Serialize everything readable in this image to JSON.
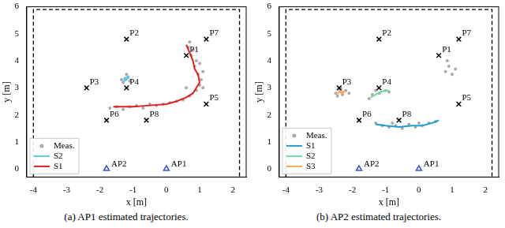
{
  "chart_data": [
    {
      "type": "scatter",
      "title": "(a) AP1 estimated trajectories.",
      "x_label": "x [m]",
      "y_label": "y [m]",
      "xlim": [
        -4.2,
        2.4
      ],
      "xticks": [
        -4,
        -3,
        -2,
        -1,
        0,
        1,
        2
      ],
      "ylim": [
        -0.3,
        6.0
      ],
      "yticks": [
        0,
        1,
        2,
        3,
        4,
        5,
        6
      ],
      "grid": false,
      "legend": "lower left",
      "series": [
        {
          "color": "#000000",
          "type": "line",
          "line_style": "dashed",
          "x": [
            -4,
            -4,
            2.2,
            2.2
          ],
          "values": [
            -0.3,
            5.9,
            5.9,
            -0.3
          ]
        },
        {
          "name": "Meas.",
          "color": "#aaaaaa",
          "type": "scatter",
          "x": [
            -1.3,
            -1.15,
            -1.25,
            -1.1,
            -1.2,
            -1.35,
            -1.7,
            -1.5,
            -1.3,
            -1.1,
            -0.9,
            -0.7,
            -0.5,
            -0.3,
            -0.1,
            0.1,
            0.3,
            0.5,
            0.7,
            0.9,
            1.0,
            1.05,
            0.95,
            1.1,
            0.85,
            0.9,
            0.75,
            0.8,
            0.65,
            0.7,
            1.0,
            1.1,
            0.6
          ],
          "values": [
            3.2,
            3.4,
            3.35,
            3.25,
            3.5,
            3.3,
            2.25,
            2.3,
            2.2,
            2.3,
            2.35,
            2.25,
            2.4,
            2.35,
            2.4,
            2.45,
            2.5,
            2.55,
            2.7,
            2.9,
            3.1,
            3.3,
            3.5,
            3.6,
            3.8,
            4.0,
            4.2,
            4.4,
            4.5,
            4.7,
            3.9,
            3.0,
            3.0
          ]
        },
        {
          "name": "S2",
          "color": "#5bc8e8",
          "type": "line",
          "x": [
            -1.3,
            -1.2,
            -1.15,
            -1.25,
            -1.2
          ],
          "values": [
            3.25,
            3.3,
            3.4,
            3.35,
            3.3
          ]
        },
        {
          "name": "S1",
          "color": "#e0201b",
          "type": "line",
          "x": [
            -1.6,
            -1.0,
            -0.5,
            0.0,
            0.3,
            0.6,
            0.8,
            1.0,
            0.95,
            0.85,
            0.8,
            0.7,
            0.6
          ],
          "values": [
            2.3,
            2.3,
            2.35,
            2.4,
            2.5,
            2.65,
            2.8,
            3.2,
            3.5,
            3.7,
            4.0,
            4.3,
            4.6
          ]
        }
      ],
      "annotations": [
        {
          "text": "P1",
          "x": 0.6,
          "y": 4.2,
          "marker": "x",
          "color": "#000000"
        },
        {
          "text": "P2",
          "x": -1.2,
          "y": 4.8,
          "marker": "x",
          "color": "#000000"
        },
        {
          "text": "P3",
          "x": -2.4,
          "y": 3.0,
          "marker": "x",
          "color": "#000000"
        },
        {
          "text": "P4",
          "x": -1.2,
          "y": 3.0,
          "marker": "x",
          "color": "#000000"
        },
        {
          "text": "P5",
          "x": 1.2,
          "y": 2.4,
          "marker": "x",
          "color": "#000000"
        },
        {
          "text": "P6",
          "x": -1.8,
          "y": 1.8,
          "marker": "x",
          "color": "#000000"
        },
        {
          "text": "P7",
          "x": 1.2,
          "y": 4.8,
          "marker": "x",
          "color": "#000000"
        },
        {
          "text": "P8",
          "x": -0.6,
          "y": 1.8,
          "marker": "x",
          "color": "#000000"
        },
        {
          "text": "AP1",
          "x": 0,
          "y": 0,
          "marker": "triangle",
          "color": "#3355cc"
        },
        {
          "text": "AP2",
          "x": -1.8,
          "y": 0,
          "marker": "triangle",
          "color": "#3355cc"
        }
      ]
    },
    {
      "type": "scatter",
      "title": "(b) AP2 estimated trajectories.",
      "x_label": "x [m]",
      "y_label": "y [m]",
      "xlim": [
        -4.2,
        2.4
      ],
      "xticks": [
        -4,
        -3,
        -2,
        -1,
        0,
        1,
        2
      ],
      "ylim": [
        -0.3,
        6.0
      ],
      "yticks": [
        0,
        1,
        2,
        3,
        4,
        5,
        6
      ],
      "grid": false,
      "legend": "lower left",
      "series": [
        {
          "color": "#000000",
          "type": "line",
          "line_style": "dashed",
          "x": [
            -4,
            -4,
            2.2,
            2.2
          ],
          "values": [
            -0.3,
            5.9,
            5.9,
            -0.3
          ]
        },
        {
          "name": "Meas.",
          "color": "#aaaaaa",
          "type": "scatter",
          "x": [
            -1.3,
            -1.1,
            -0.9,
            -0.7,
            -0.5,
            -0.3,
            -0.1,
            0.1,
            0.3,
            0.5,
            -0.8,
            0.0,
            -1.5,
            -1.4,
            -1.2,
            -1.0,
            -0.9,
            -1.3,
            -2.5,
            -2.4,
            -2.3,
            -2.2,
            -2.45,
            -2.35,
            -2.1,
            0.8,
            0.9,
            1.0,
            0.85,
            1.1
          ],
          "values": [
            1.7,
            1.6,
            1.55,
            1.6,
            1.5,
            1.65,
            1.55,
            1.6,
            1.7,
            1.75,
            1.7,
            1.7,
            2.6,
            2.75,
            2.8,
            2.9,
            2.85,
            2.9,
            2.8,
            2.95,
            2.75,
            2.9,
            2.7,
            3.0,
            2.8,
            3.6,
            3.8,
            3.5,
            4.0,
            3.7
          ]
        },
        {
          "name": "S1",
          "color": "#1f9ed0",
          "type": "line",
          "x": [
            -1.3,
            -1.0,
            -0.6,
            -0.2,
            0.1,
            0.4,
            0.6
          ],
          "values": [
            1.65,
            1.6,
            1.55,
            1.6,
            1.6,
            1.7,
            1.8
          ]
        },
        {
          "name": "S2",
          "color": "#6edc9a",
          "type": "line",
          "x": [
            -1.45,
            -1.3,
            -1.15,
            -1.0,
            -0.9
          ],
          "values": [
            2.65,
            2.75,
            2.85,
            2.9,
            2.9
          ]
        },
        {
          "name": "S3",
          "color": "#f4a45c",
          "type": "line",
          "x": [
            -2.45,
            -2.35,
            -2.25,
            -2.3,
            -2.4
          ],
          "values": [
            2.8,
            2.9,
            2.85,
            2.8,
            2.85
          ]
        }
      ],
      "annotations": [
        {
          "text": "P1",
          "x": 0.6,
          "y": 4.2,
          "marker": "x",
          "color": "#000000"
        },
        {
          "text": "P2",
          "x": -1.2,
          "y": 4.8,
          "marker": "x",
          "color": "#000000"
        },
        {
          "text": "P3",
          "x": -2.4,
          "y": 3.0,
          "marker": "x",
          "color": "#000000"
        },
        {
          "text": "P4",
          "x": -1.2,
          "y": 3.0,
          "marker": "x",
          "color": "#000000"
        },
        {
          "text": "P5",
          "x": 1.2,
          "y": 2.4,
          "marker": "x",
          "color": "#000000"
        },
        {
          "text": "P6",
          "x": -1.8,
          "y": 1.8,
          "marker": "x",
          "color": "#000000"
        },
        {
          "text": "P7",
          "x": 1.2,
          "y": 4.8,
          "marker": "x",
          "color": "#000000"
        },
        {
          "text": "P8",
          "x": -0.6,
          "y": 1.8,
          "marker": "x",
          "color": "#000000"
        },
        {
          "text": "AP1",
          "x": 0,
          "y": 0,
          "marker": "triangle",
          "color": "#3355cc"
        },
        {
          "text": "AP2",
          "x": -1.8,
          "y": 0,
          "marker": "triangle",
          "color": "#3355cc"
        }
      ]
    }
  ]
}
